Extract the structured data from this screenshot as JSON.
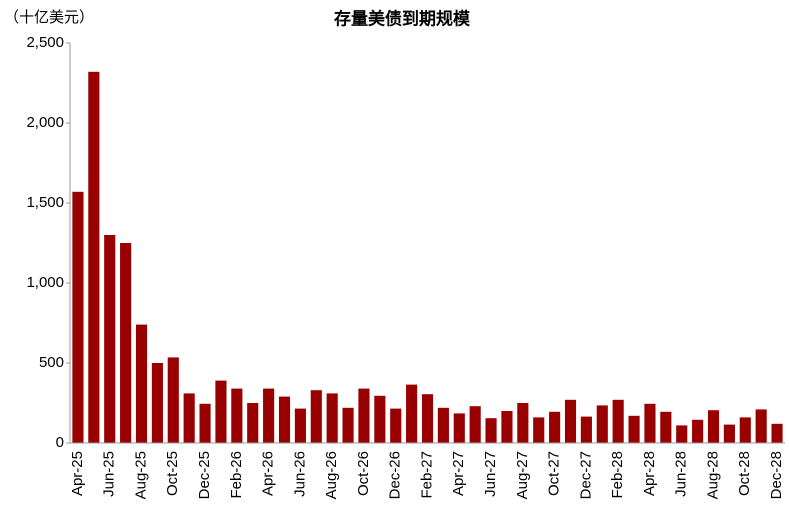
{
  "chart_data": {
    "type": "bar",
    "title": "存量美债到期规模",
    "y_label": "（十亿美元）",
    "categories": [
      "Apr-25",
      null,
      "Jun-25",
      null,
      "Aug-25",
      null,
      "Oct-25",
      null,
      "Dec-25",
      null,
      "Feb-26",
      null,
      "Apr-26",
      null,
      "Jun-26",
      null,
      "Aug-26",
      null,
      "Oct-26",
      null,
      "Dec-26",
      null,
      "Feb-27",
      null,
      "Apr-27",
      null,
      "Jun-27",
      null,
      "Aug-27",
      null,
      "Oct-27",
      null,
      "Dec-27",
      null,
      "Feb-28",
      null,
      "Apr-28",
      null,
      "Jun-28",
      null,
      "Aug-28",
      null,
      "Oct-28",
      null,
      "Dec-28"
    ],
    "values": [
      1570,
      2320,
      1300,
      1250,
      740,
      500,
      535,
      310,
      245,
      390,
      340,
      250,
      340,
      290,
      215,
      330,
      310,
      220,
      340,
      295,
      215,
      365,
      305,
      220,
      185,
      230,
      155,
      200,
      250,
      160,
      195,
      270,
      165,
      235,
      270,
      170,
      245,
      195,
      110,
      145,
      205,
      115,
      160,
      210,
      120
    ],
    "color": "#990000",
    "ylim": [
      0,
      2500
    ],
    "yticks": [
      0,
      500,
      {
        "value": 1000,
        "label": "1,000"
      },
      {
        "value": 1500,
        "label": "1,500"
      },
      {
        "value": 2000,
        "label": "2,000"
      },
      {
        "value": 2500,
        "label": "2,500"
      }
    ],
    "grid": false
  }
}
